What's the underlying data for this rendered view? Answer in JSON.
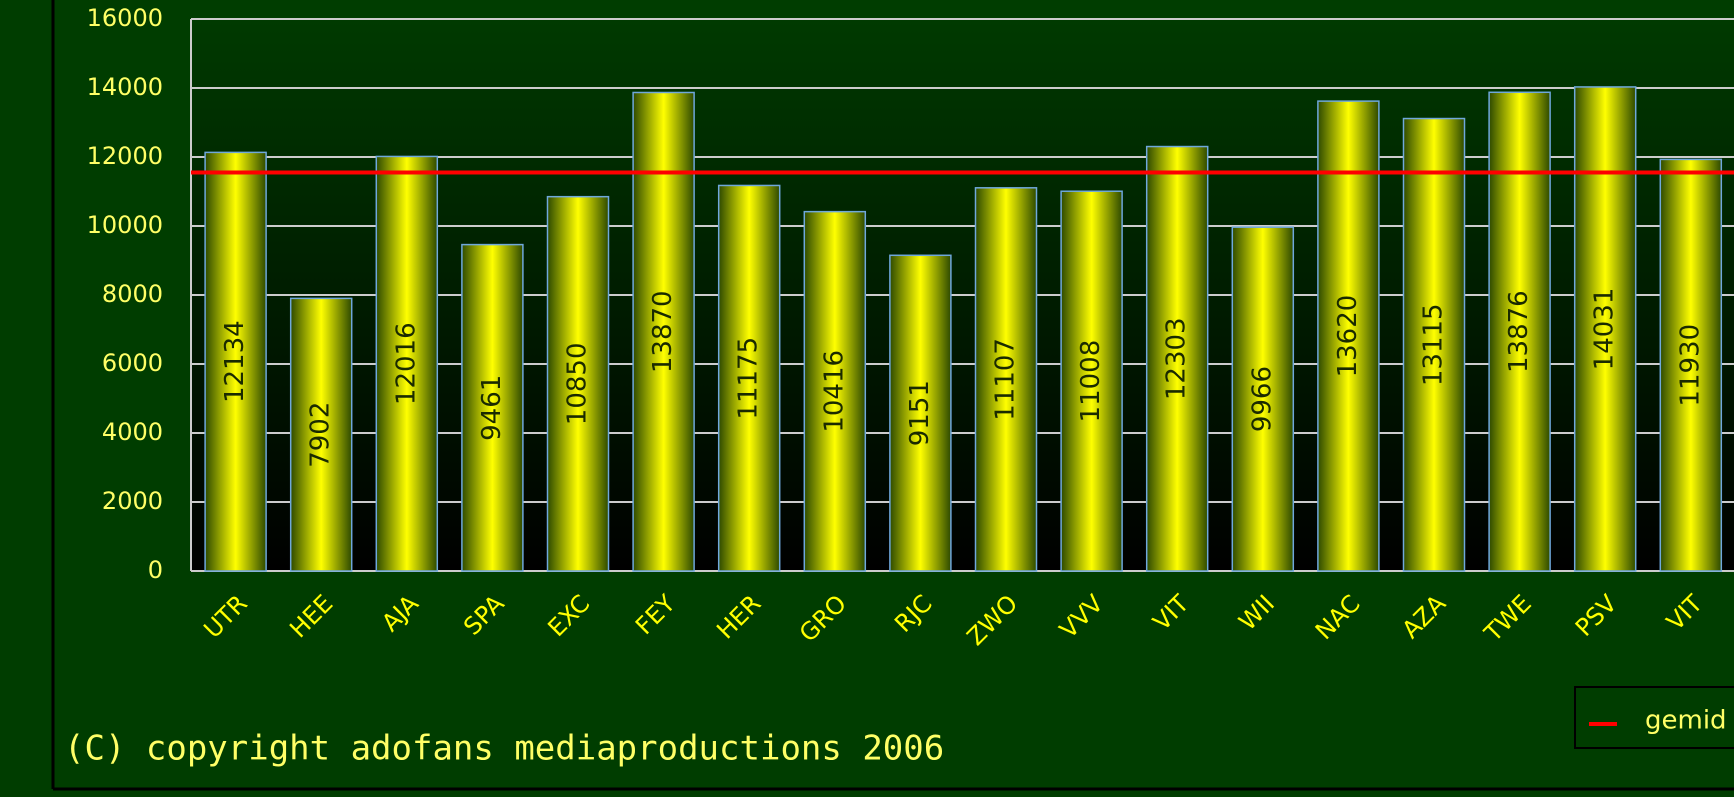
{
  "chart_data": {
    "type": "bar",
    "categories": [
      "UTR",
      "HEE",
      "AJA",
      "SPA",
      "EXC",
      "FEY",
      "HER",
      "GRO",
      "RJC",
      "ZWO",
      "VVV",
      "VIT",
      "WII",
      "NAC",
      "AZA",
      "TWE",
      "PSV",
      "VIT"
    ],
    "values": [
      12134,
      7902,
      12016,
      9461,
      10850,
      13870,
      11175,
      10416,
      9151,
      11107,
      11008,
      12303,
      9966,
      13620,
      13115,
      13876,
      14031,
      11930
    ],
    "color": "#ffff00",
    "ylim": [
      0,
      16000
    ],
    "yticks": [
      0,
      2000,
      4000,
      6000,
      8000,
      10000,
      12000,
      14000,
      16000
    ],
    "grid": true,
    "average": {
      "name": "gemid",
      "value": 11552,
      "color": "#ff0000"
    },
    "legend": "bottom-right",
    "footer": "(C) copyright adofans mediaproductions 2006"
  }
}
